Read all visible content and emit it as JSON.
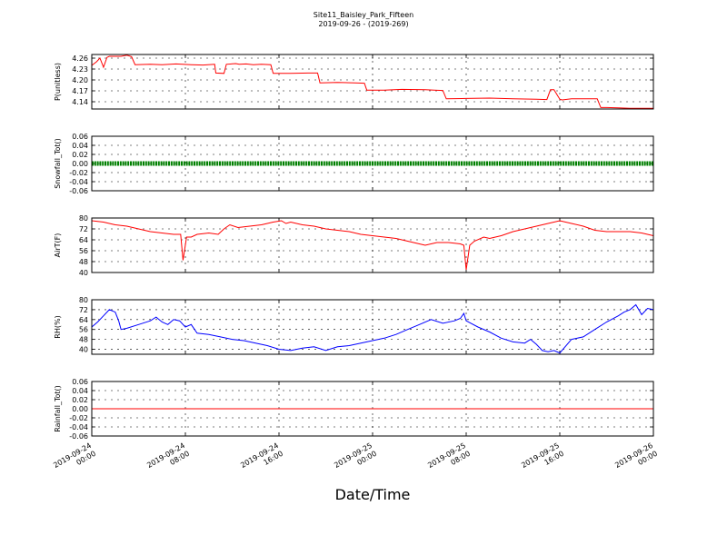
{
  "chart_data": {
    "type": "line",
    "title": "Site11_Baisley_Park_Fifteen",
    "subtitle": "2019-09-26 - (2019-269)",
    "xlabel": "Date/Time",
    "x_tick_labels": [
      [
        "2019-09-24",
        "00:00"
      ],
      [
        "2019-09-24",
        "08:00"
      ],
      [
        "2019-09-24",
        "16:00"
      ],
      [
        "2019-09-25",
        "00:00"
      ],
      [
        "2019-09-25",
        "08:00"
      ],
      [
        "2019-09-25",
        "16:00"
      ],
      [
        "2019-09-26",
        "00:00"
      ]
    ],
    "x_range_hours": [
      0,
      48
    ],
    "grid": true,
    "panels": [
      {
        "ylabel": "P(unitless)",
        "ylim": [
          4.12,
          4.27
        ],
        "yticks": [
          "4.26",
          "4.23",
          "4.20",
          "4.17",
          "4.14"
        ],
        "ytick_values": [
          4.26,
          4.23,
          4.2,
          4.17,
          4.14
        ],
        "color": "#ff0000",
        "x": [
          0,
          0.4,
          0.7,
          1.0,
          1.3,
          1.5,
          2.5,
          3.0,
          3.4,
          3.7,
          5,
          6,
          7.2,
          8.5,
          9.5,
          10.5,
          10.6,
          11.3,
          11.5,
          12.3,
          12.6,
          13.2,
          13.8,
          14.5,
          15.3,
          15.5,
          17,
          18.5,
          19.3,
          19.5,
          21,
          22.5,
          23.3,
          23.5,
          25,
          26.5,
          28.5,
          29.3,
          30,
          30.3,
          32,
          34,
          36,
          38,
          38.9,
          39.2,
          39.5,
          40,
          40.2,
          41,
          42,
          43.2,
          43.5,
          44,
          45,
          46,
          47,
          48
        ],
        "y": [
          4.24,
          4.25,
          4.26,
          4.235,
          4.262,
          4.265,
          4.265,
          4.268,
          4.264,
          4.242,
          4.243,
          4.242,
          4.244,
          4.242,
          4.241,
          4.243,
          4.219,
          4.218,
          4.243,
          4.245,
          4.243,
          4.244,
          4.242,
          4.243,
          4.242,
          4.218,
          4.218,
          4.219,
          4.219,
          4.192,
          4.193,
          4.192,
          4.191,
          4.172,
          4.172,
          4.174,
          4.173,
          4.172,
          4.171,
          4.148,
          4.149,
          4.15,
          4.148,
          4.147,
          4.146,
          4.173,
          4.173,
          4.147,
          4.145,
          4.148,
          4.148,
          4.148,
          4.124,
          4.124,
          4.123,
          4.122,
          4.122,
          4.122
        ]
      },
      {
        "ylabel": "Snowfall_Tot()",
        "ylim": [
          -0.06,
          0.06
        ],
        "yticks": [
          "0.06",
          "0.04",
          "0.02",
          "0.00",
          "-0.02",
          "-0.04",
          "-0.06"
        ],
        "ytick_values": [
          0.06,
          0.04,
          0.02,
          0.0,
          -0.02,
          -0.04,
          -0.06
        ],
        "color": "#008000",
        "style": "markers",
        "x": [
          0,
          48
        ],
        "y": [
          0,
          0
        ]
      },
      {
        "ylabel": "AirT(F)",
        "ylim": [
          40,
          80
        ],
        "yticks": [
          "80",
          "72",
          "64",
          "56",
          "48",
          "40"
        ],
        "ytick_values": [
          80,
          72,
          64,
          56,
          48,
          40
        ],
        "color": "#ff0000",
        "x": [
          0,
          1,
          2,
          3,
          4,
          5,
          6,
          7,
          7.6,
          7.8,
          8.1,
          8.5,
          9,
          10,
          10.8,
          11.3,
          11.8,
          12.5,
          13.5,
          14.5,
          15.5,
          16.2,
          16.6,
          17,
          18,
          19,
          20,
          21,
          22,
          23,
          24,
          25,
          26,
          27,
          28,
          28.5,
          29.5,
          30.5,
          31.5,
          31.8,
          32,
          32.3,
          32.7,
          33.5,
          34,
          35,
          36,
          37,
          38,
          39,
          39.5,
          40,
          41,
          42,
          43,
          44,
          45,
          46,
          47,
          48
        ],
        "y": [
          78,
          77,
          75,
          74,
          72,
          70,
          69,
          68,
          68,
          49,
          66,
          66,
          68,
          69,
          68,
          72,
          75,
          73,
          74,
          75,
          77,
          78,
          76,
          77,
          75,
          74,
          72,
          71,
          70,
          68,
          67,
          66,
          65,
          63,
          61,
          60,
          62,
          62,
          61,
          60,
          42,
          60,
          63,
          66,
          65,
          67,
          70,
          72,
          74,
          76,
          77,
          78,
          76,
          74,
          71,
          70,
          70,
          70,
          69,
          67
        ]
      },
      {
        "ylabel": "RH(%)",
        "ylim": [
          36,
          80
        ],
        "yticks": [
          "80",
          "72",
          "64",
          "56",
          "48",
          "40"
        ],
        "ytick_values": [
          80,
          72,
          64,
          56,
          48,
          40
        ],
        "color": "#0000ff",
        "x": [
          0,
          0.5,
          1,
          1.5,
          2,
          2.3,
          2.5,
          3,
          4,
          5,
          5.5,
          6,
          6.5,
          7,
          7.5,
          8,
          8.5,
          9,
          10,
          11,
          12,
          13,
          14,
          15,
          16,
          17,
          18,
          19,
          20,
          21,
          22,
          23,
          24,
          25,
          26,
          27,
          28,
          29,
          30,
          31,
          31.5,
          31.8,
          32,
          33,
          34,
          35,
          36,
          37,
          37.5,
          38,
          38.5,
          39,
          39.5,
          40,
          41,
          42,
          43,
          44,
          45,
          45.5,
          46,
          46.5,
          47,
          47.5,
          48
        ],
        "y": [
          58,
          62,
          67,
          72,
          70,
          63,
          56,
          57,
          60,
          63,
          66,
          62,
          60,
          64,
          63,
          58,
          60,
          53,
          52,
          50,
          48,
          47,
          45,
          43,
          40,
          39,
          41,
          42,
          39,
          42,
          43,
          45,
          47,
          49,
          52,
          56,
          60,
          64,
          61,
          63,
          65,
          69,
          63,
          58,
          54,
          49,
          46,
          45,
          48,
          44,
          39,
          38,
          39,
          37,
          48,
          50,
          56,
          62,
          67,
          70,
          72,
          76,
          68,
          73,
          72
        ]
      },
      {
        "ylabel": "Rainfall_Tot()",
        "ylim": [
          -0.06,
          0.06
        ],
        "yticks": [
          "0.06",
          "0.04",
          "0.02",
          "0.00",
          "-0.02",
          "-0.04",
          "-0.06"
        ],
        "ytick_values": [
          0.06,
          0.04,
          0.02,
          0.0,
          -0.02,
          -0.04,
          -0.06
        ],
        "color": "#ff0000",
        "x": [
          0,
          48
        ],
        "y": [
          0,
          0
        ]
      }
    ]
  }
}
